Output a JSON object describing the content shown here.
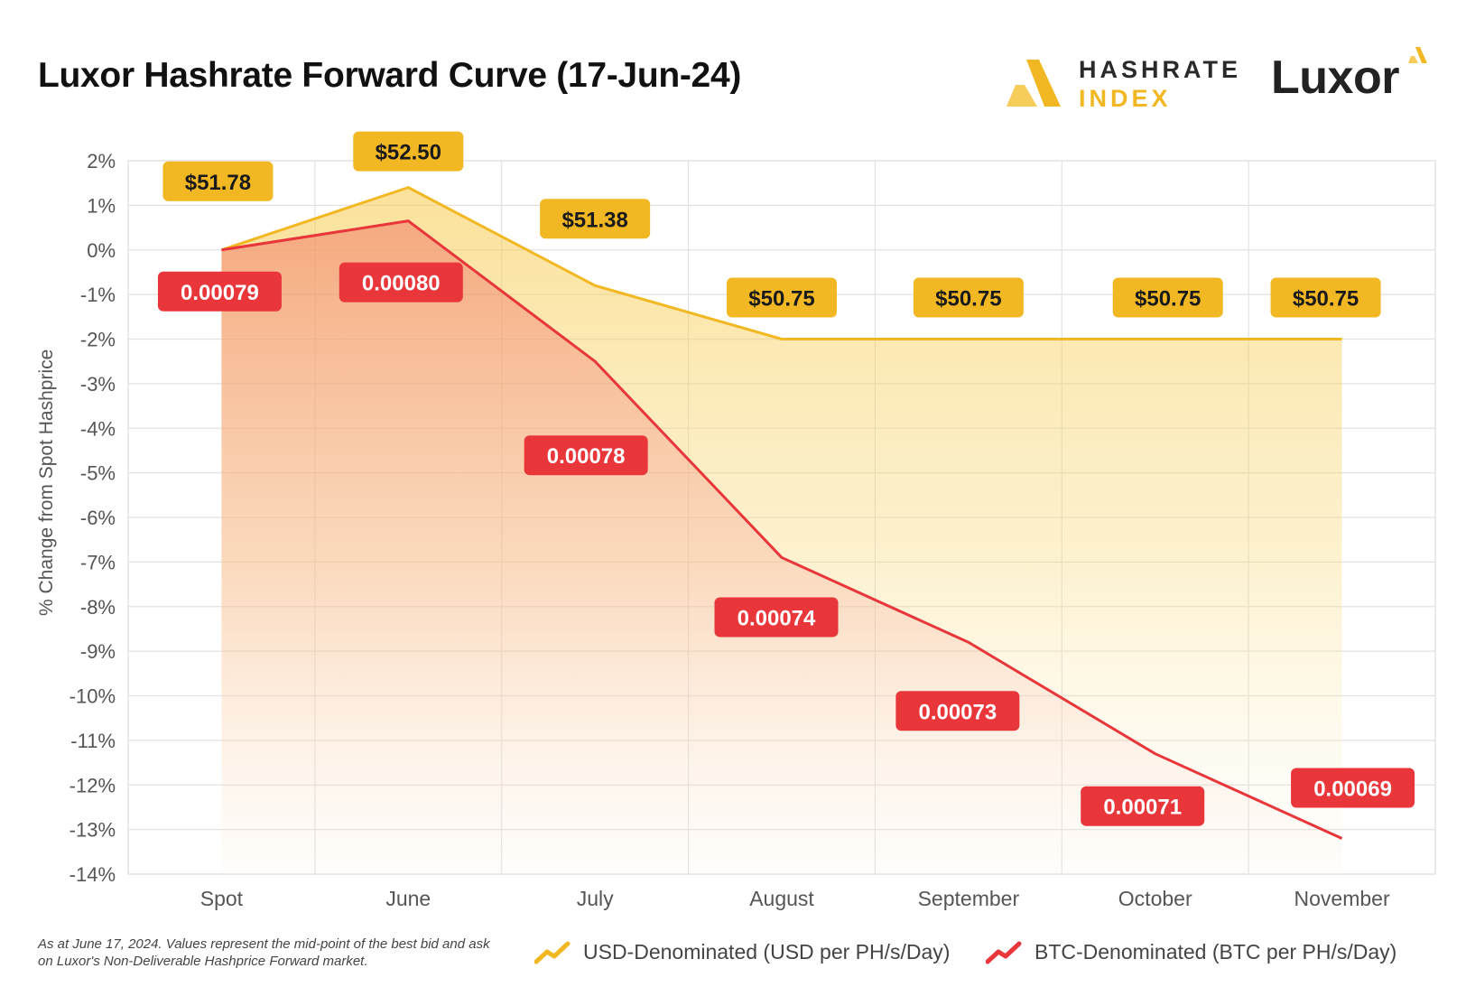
{
  "title": "Luxor Hashrate Forward Curve (17-Jun-24)",
  "logos": {
    "hashrate_index": {
      "line1": "HASHRATE",
      "line2": "INDEX",
      "accent": "#f2b824"
    },
    "luxor": {
      "word": "Luxor",
      "accent": "#f2b824"
    }
  },
  "footnote": "As at June 17, 2024. Values represent the mid-point of the best bid and ask on Luxor's Non-Deliverable Hashprice Forward market.",
  "legend": {
    "usd": "USD-Denominated (USD per PH/s/Day)",
    "btc": "BTC-Denominated (BTC per PH/s/Day)"
  },
  "chart_data": {
    "type": "area",
    "ylabel": "% Change from Spot Hashprice",
    "categories": [
      "Spot",
      "June",
      "July",
      "August",
      "September",
      "October",
      "November"
    ],
    "ylim": [
      -14,
      2
    ],
    "yticks": [
      "2%",
      "1%",
      "0%",
      "-1%",
      "-2%",
      "-3%",
      "-4%",
      "-5%",
      "-6%",
      "-7%",
      "-8%",
      "-9%",
      "-10%",
      "-11%",
      "-12%",
      "-13%",
      "-14%"
    ],
    "grid": true,
    "legend_position": "bottom",
    "series": [
      {
        "name": "USD-Denominated (USD per PH/s/Day)",
        "color": "#f2b824",
        "values": [
          0,
          1.4,
          -0.8,
          -2.0,
          -2.0,
          -2.0,
          -2.0
        ],
        "labels": [
          "$51.78",
          "$52.50",
          "$51.38",
          "$50.75",
          "$50.75",
          "$50.75",
          "$50.75"
        ]
      },
      {
        "name": "BTC-Denominated (BTC per PH/s/Day)",
        "color": "#e8363b",
        "values": [
          0,
          0.65,
          -2.5,
          -6.9,
          -8.8,
          -11.3,
          -13.2
        ],
        "labels": [
          "0.00079",
          "0.00080",
          "0.00078",
          "0.00074",
          "0.00073",
          "0.00071",
          "0.00069"
        ]
      }
    ]
  }
}
